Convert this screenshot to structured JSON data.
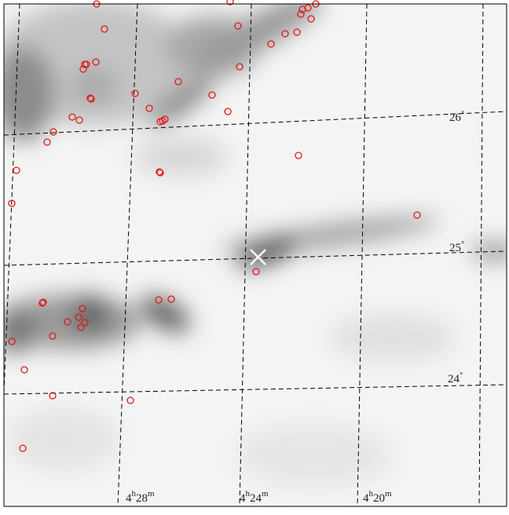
{
  "dec_labels": [
    {
      "value": "26",
      "unit": "°"
    },
    {
      "value": "25",
      "unit": "°"
    },
    {
      "value": "24",
      "unit": "°"
    }
  ],
  "ra_labels": [
    {
      "hours": "4",
      "hours_unit": "h",
      "minutes": "28",
      "minutes_unit": "m"
    },
    {
      "hours": "4",
      "hours_unit": "h",
      "minutes": "24",
      "minutes_unit": "m"
    },
    {
      "hours": "4",
      "hours_unit": "h",
      "minutes": "20",
      "minutes_unit": "m"
    }
  ]
}
